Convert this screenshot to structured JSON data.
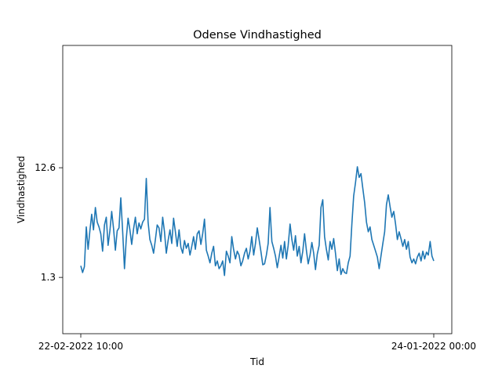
{
  "chart_data": {
    "type": "line",
    "title": "Odense Vindhastighed",
    "xlabel": "Tid",
    "ylabel": "Vindhastighed",
    "x_tick_labels": [
      "22-02-2022 10:00",
      "24-01-2022 00:00"
    ],
    "y_ticks": [
      1.3,
      12.6
    ],
    "y_tick_labels": [
      "1.3",
      "12.6"
    ],
    "ylim": [
      -4.5,
      25.2
    ],
    "grid": false,
    "legend": "none",
    "line_color": "#1f77b4",
    "series": [
      {
        "values": [
          2.5,
          1.8,
          2.4,
          6.5,
          4.2,
          6.1,
          7.8,
          6.2,
          8.5,
          7.0,
          6.5,
          5.8,
          4.0,
          6.7,
          7.5,
          4.6,
          6.1,
          8.1,
          6.3,
          4.1,
          6.1,
          6.4,
          9.5,
          6.0,
          2.2,
          5.3,
          7.4,
          6.2,
          4.7,
          6.3,
          7.5,
          5.8,
          6.9,
          6.3,
          7.0,
          7.3,
          11.5,
          7.0,
          5.2,
          4.6,
          3.8,
          5.2,
          6.7,
          6.4,
          5.0,
          7.5,
          6.0,
          3.8,
          5.1,
          6.2,
          4.8,
          7.4,
          6.0,
          4.5,
          6.2,
          4.4,
          3.8,
          5.1,
          4.3,
          4.8,
          3.6,
          4.5,
          5.5,
          4.2,
          5.8,
          6.1,
          4.7,
          5.8,
          7.3,
          4.1,
          3.5,
          2.8,
          3.8,
          4.5,
          2.5,
          3.0,
          2.2,
          2.5,
          3.0,
          1.5,
          4.0,
          3.5,
          2.8,
          5.5,
          4.2,
          3.2,
          4.0,
          3.6,
          2.5,
          3.0,
          3.8,
          4.3,
          3.2,
          4.0,
          5.5,
          3.6,
          4.8,
          6.4,
          5.2,
          4.0,
          2.6,
          2.7,
          3.6,
          4.8,
          8.5,
          5.0,
          4.3,
          3.5,
          2.3,
          3.4,
          4.6,
          3.3,
          5.0,
          3.2,
          4.6,
          6.8,
          5.2,
          4.1,
          5.6,
          3.5,
          4.5,
          2.8,
          4.0,
          5.8,
          4.1,
          2.7,
          3.6,
          4.9,
          3.8,
          2.1,
          3.7,
          4.6,
          8.5,
          9.3,
          5.5,
          4.2,
          3.1,
          5.0,
          4.2,
          5.3,
          3.8,
          2.0,
          3.2,
          1.6,
          2.2,
          1.8,
          1.7,
          2.8,
          3.5,
          6.8,
          9.7,
          11.1,
          12.7,
          11.6,
          12.0,
          10.5,
          9.0,
          7.0,
          6.0,
          6.5,
          5.2,
          4.6,
          4.0,
          3.4,
          2.2,
          3.5,
          4.8,
          6.0,
          8.8,
          9.8,
          8.6,
          7.5,
          8.1,
          6.8,
          5.2,
          6.0,
          5.3,
          4.5,
          5.2,
          4.2,
          5.0,
          3.4,
          2.8,
          3.2,
          2.7,
          3.4,
          3.8,
          3.0,
          4.0,
          3.2,
          3.9,
          3.6,
          5.0,
          3.5,
          3.0
        ]
      }
    ]
  }
}
